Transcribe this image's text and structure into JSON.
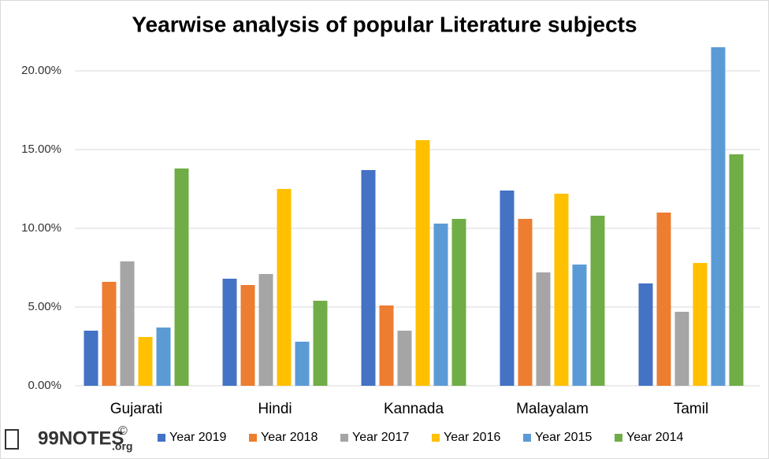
{
  "chart_data": {
    "type": "bar",
    "title": "Yearwise analysis of popular Literature subjects",
    "categories": [
      "Gujarati",
      "Hindi",
      "Kannada",
      "Malayalam",
      "Tamil"
    ],
    "series": [
      {
        "name": "Year 2019",
        "color": "#4472c4",
        "values": [
          3.5,
          6.8,
          13.7,
          12.4,
          6.5
        ]
      },
      {
        "name": "Year 2018",
        "color": "#ed7d31",
        "values": [
          6.6,
          6.4,
          5.1,
          10.6,
          11.0
        ]
      },
      {
        "name": "Year 2017",
        "color": "#a5a5a5",
        "values": [
          7.9,
          7.1,
          3.5,
          7.2,
          4.7
        ]
      },
      {
        "name": "Year 2016",
        "color": "#ffc000",
        "values": [
          3.1,
          12.5,
          15.6,
          12.2,
          7.8
        ]
      },
      {
        "name": "Year 2015",
        "color": "#5b9bd5",
        "values": [
          3.7,
          2.8,
          10.3,
          7.7,
          21.5
        ]
      },
      {
        "name": "Year 2014",
        "color": "#70ad47",
        "values": [
          13.8,
          5.4,
          10.6,
          10.8,
          14.7
        ]
      }
    ],
    "ylim": [
      0,
      22
    ],
    "yticks": [
      {
        "value": 0,
        "label": "0.00%"
      },
      {
        "value": 5,
        "label": "5.00%"
      },
      {
        "value": 10,
        "label": "10.00%"
      },
      {
        "value": 15,
        "label": "15.00%"
      },
      {
        "value": 20,
        "label": "20.00%"
      }
    ],
    "grid": true,
    "legend": "bottom"
  },
  "watermark": {
    "name": "99NOTES",
    "suffix": ".org",
    "symbol": "©"
  }
}
